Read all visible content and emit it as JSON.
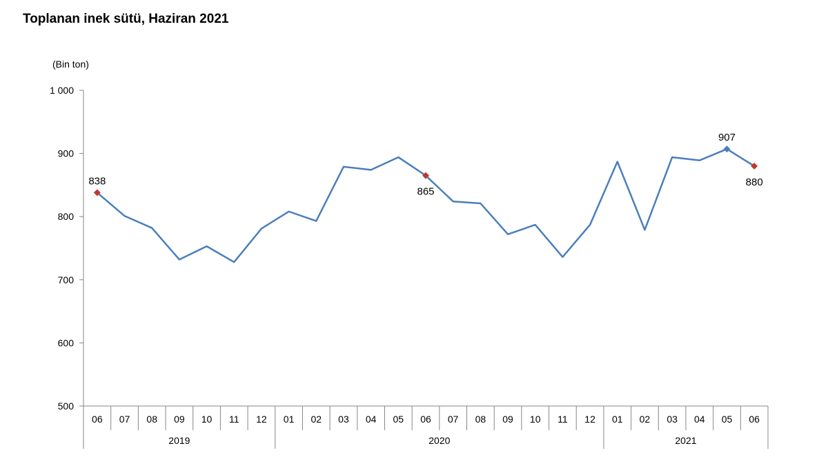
{
  "chart_data": {
    "type": "line",
    "title": "Toplanan inek sütü, Haziran 2021",
    "ylabel": "(Bin  ton)",
    "xlabel": "",
    "ylim": [
      500,
      1000
    ],
    "y_ticks": [
      500,
      600,
      700,
      800,
      900,
      1000
    ],
    "y_tick_labels": [
      "500",
      "600",
      "700",
      "800",
      "900",
      "1 000"
    ],
    "grid": false,
    "legend": "none",
    "categories": [
      "06",
      "07",
      "08",
      "09",
      "10",
      "11",
      "12",
      "01",
      "02",
      "03",
      "04",
      "05",
      "06",
      "07",
      "08",
      "09",
      "10",
      "11",
      "12",
      "01",
      "02",
      "03",
      "04",
      "05",
      "06"
    ],
    "year_groups": [
      {
        "label": "2019",
        "count": 7
      },
      {
        "label": "2020",
        "count": 12
      },
      {
        "label": "2021",
        "count": 6
      }
    ],
    "series": [
      {
        "name": "Toplanan inek sütü",
        "color": "#4a7ebb",
        "values": [
          838,
          801,
          782,
          732,
          753,
          728,
          781,
          808,
          793,
          879,
          874,
          894,
          865,
          824,
          821,
          772,
          787,
          736,
          787,
          887,
          779,
          894,
          889,
          907,
          880
        ]
      }
    ],
    "annotations": [
      {
        "index": 0,
        "text": "838",
        "position": "above",
        "marker_color": "#c0392b"
      },
      {
        "index": 12,
        "text": "865",
        "position": "below",
        "marker_color": "#c0392b"
      },
      {
        "index": 23,
        "text": "907",
        "position": "above",
        "marker_color": "#4a7ebb"
      },
      {
        "index": 24,
        "text": "880",
        "position": "below",
        "marker_color": "#c0392b"
      }
    ]
  }
}
